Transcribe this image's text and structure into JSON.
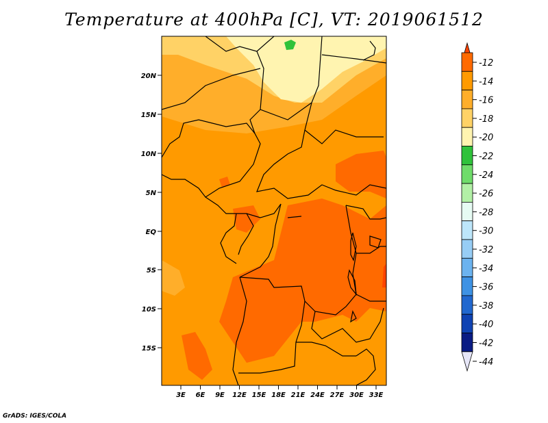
{
  "title": "Temperature at 400hPa [C], VT: 2019061512",
  "credit": "GrADS: IGES/COLA",
  "map": {
    "lat_labels": [
      "20N",
      "15N",
      "10N",
      "5N",
      "EQ",
      "5S",
      "10S",
      "15S"
    ],
    "lon_labels": [
      "3E",
      "6E",
      "9E",
      "12E",
      "15E",
      "18E",
      "21E",
      "24E",
      "27E",
      "30E",
      "33E"
    ]
  },
  "colorbar": {
    "labels": [
      "-12",
      "-14",
      "-16",
      "-18",
      "-20",
      "-22",
      "-24",
      "-26",
      "-28",
      "-30",
      "-32",
      "-34",
      "-36",
      "-38",
      "-40",
      "-42",
      "-44"
    ],
    "colors": [
      "#ff4500",
      "#ff6a00",
      "#ff9a00",
      "#ffae2a",
      "#ffd266",
      "#fff4b0",
      "#2fc23b",
      "#6fdc6a",
      "#b2f0a6",
      "#e6fbf3",
      "#bde6fa",
      "#97cdf5",
      "#6cb3ef",
      "#3e92e4",
      "#2168cf",
      "#0f43b3",
      "#0a1c84",
      "#e6e6f7"
    ]
  }
}
